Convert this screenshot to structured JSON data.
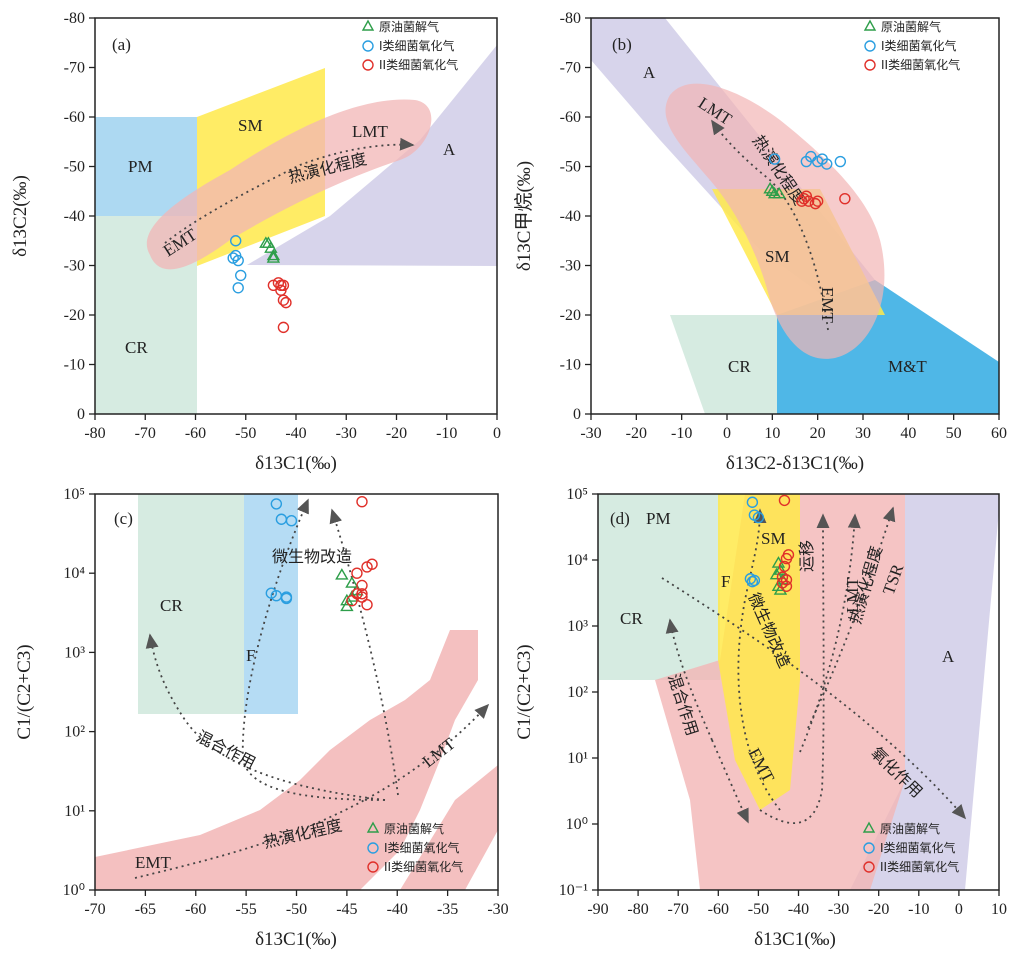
{
  "legend": [
    {
      "label": "原油菌解气",
      "marker": "triangle",
      "color": "#2e9e4a"
    },
    {
      "label": "I类细菌氧化气",
      "marker": "circle",
      "color": "#2a9ee0"
    },
    {
      "label": "II类细菌氧化气",
      "marker": "circle",
      "color": "#e0302a"
    }
  ],
  "region_colors": {
    "PM": "#9fd2f0",
    "CR": "#cfe8dc",
    "SM": "#ffe94a",
    "LMT": "#f2b5b5",
    "EMT": "#f2b5b5",
    "A": "#cdc9e6",
    "F": "#a8d6f2",
    "M&T": "#46b3e6"
  },
  "chart_data": [
    {
      "type": "scatter",
      "panel": "(a)",
      "xlabel": "δ13C1(‰)",
      "ylabel": "δ13C2(‰)",
      "xlim": [
        -80,
        0
      ],
      "ylim": [
        -80,
        0
      ],
      "xticks": [
        -80,
        -70,
        -60,
        -50,
        -40,
        -30,
        -20,
        -10,
        0
      ],
      "yticks": [
        0,
        -10,
        -20,
        -30,
        -40,
        -50,
        -60,
        -70,
        -80
      ],
      "region_labels": [
        "PM",
        "CR",
        "SM",
        "LMT",
        "A",
        "EMT"
      ],
      "annotations": [
        "热演化程度"
      ],
      "series": [
        {
          "name": "原油菌解气",
          "points": [
            [
              -45.5,
              -34.5
            ],
            [
              -44.5,
              -32
            ],
            [
              -44.5,
              -31.5
            ],
            [
              -45,
              -33.5
            ],
            [
              -46,
              -34.5
            ]
          ]
        },
        {
          "name": "I类细菌氧化气",
          "points": [
            [
              -51.5,
              -25.5
            ],
            [
              -51,
              -28
            ],
            [
              -51.5,
              -31
            ],
            [
              -52,
              -32
            ],
            [
              -52.5,
              -31.5
            ],
            [
              -52,
              -35
            ]
          ]
        },
        {
          "name": "II类细菌氧化气",
          "points": [
            [
              -42.5,
              -17.5
            ],
            [
              -42,
              -22.5
            ],
            [
              -42.5,
              -23
            ],
            [
              -43,
              -26
            ],
            [
              -44.5,
              -26
            ],
            [
              -43.5,
              -26.5
            ],
            [
              -42.5,
              -26
            ],
            [
              -43,
              -25
            ]
          ]
        }
      ]
    },
    {
      "type": "scatter",
      "panel": "(b)",
      "xlabel": "δ13C2-δ13C1(‰)",
      "ylabel": "δ13C甲烷(‰)",
      "xlim": [
        -30,
        60
      ],
      "ylim": [
        -80,
        0
      ],
      "xticks": [
        -30,
        -20,
        -10,
        0,
        10,
        20,
        30,
        40,
        50,
        60
      ],
      "yticks": [
        0,
        -10,
        -20,
        -30,
        -40,
        -50,
        -60,
        -70,
        -80
      ],
      "region_labels": [
        "A",
        "LMT",
        "SM",
        "EMT",
        "CR",
        "M&T"
      ],
      "annotations": [
        "热演化程度"
      ],
      "series": [
        {
          "name": "原油菌解气",
          "points": [
            [
              9.5,
              -45.5
            ],
            [
              10.5,
              -44.5
            ],
            [
              11.5,
              -44.5
            ],
            [
              10,
              -45
            ]
          ]
        },
        {
          "name": "I类细菌氧化气",
          "points": [
            [
              10.5,
              -51.5
            ],
            [
              17.5,
              -51
            ],
            [
              18.5,
              -52
            ],
            [
              20,
              -51
            ],
            [
              21,
              -51.5
            ],
            [
              22,
              -50.5
            ],
            [
              25,
              -51
            ]
          ]
        },
        {
          "name": "II类细菌氧化气",
          "points": [
            [
              16.5,
              -43
            ],
            [
              17,
              -43.5
            ],
            [
              17.5,
              -44
            ],
            [
              18,
              -43
            ],
            [
              19.5,
              -42.5
            ],
            [
              20,
              -43
            ],
            [
              26,
              -43.5
            ]
          ]
        }
      ]
    },
    {
      "type": "scatter",
      "panel": "(c)",
      "xlabel": "δ13C1(‰)",
      "ylabel": "C1/(C2+C3)",
      "xlim": [
        -70,
        -30
      ],
      "ylog": [
        0,
        5
      ],
      "xticks": [
        -70,
        -65,
        -60,
        -55,
        -50,
        -45,
        -40,
        -35,
        -30
      ],
      "yticks": [
        "10⁰",
        "10¹",
        "10²",
        "10³",
        "10⁴",
        "10⁵"
      ],
      "region_labels": [
        "CR",
        "F",
        "EMT",
        "LMT"
      ],
      "annotations": [
        "微生物改造",
        "混合作用",
        "热演化程度"
      ],
      "series": [
        {
          "name": "原油菌解气",
          "points": [
            [
              -45.5,
              9500
            ],
            [
              -44.5,
              7500
            ],
            [
              -44,
              6000
            ],
            [
              -45,
              4500
            ],
            [
              -44.5,
              5000
            ],
            [
              -45,
              3800
            ]
          ]
        },
        {
          "name": "I类细菌氧化气",
          "points": [
            [
              -52,
              75000
            ],
            [
              -51.5,
              48000
            ],
            [
              -50.5,
              46000
            ],
            [
              -52.5,
              5600
            ],
            [
              -52,
              5200
            ],
            [
              -51,
              5000
            ],
            [
              -51,
              4800
            ]
          ]
        },
        {
          "name": "II类细菌氧化气",
          "points": [
            [
              -43.5,
              80000
            ],
            [
              -42.5,
              13000
            ],
            [
              -43,
              12000
            ],
            [
              -44,
              10000
            ],
            [
              -43.5,
              7000
            ],
            [
              -44,
              5500
            ],
            [
              -43.5,
              5000
            ],
            [
              -44.5,
              4500
            ],
            [
              -43,
              4000
            ],
            [
              -43.5,
              5500
            ]
          ]
        }
      ]
    },
    {
      "type": "scatter",
      "panel": "(d)",
      "xlabel": "δ13C1(‰)",
      "ylabel": "C1/(C2+C3)",
      "xlim": [
        -90,
        10
      ],
      "ylog": [
        -1,
        5
      ],
      "xticks": [
        -90,
        -80,
        -70,
        -60,
        -50,
        -40,
        -30,
        -20,
        -10,
        0,
        10
      ],
      "yticks": [
        "10⁻¹",
        "10⁰",
        "10¹",
        "10²",
        "10³",
        "10⁴",
        "10⁵"
      ],
      "region_labels": [
        "PM",
        "F",
        "SM",
        "CR",
        "EMT",
        "LMT",
        "TSR",
        "A"
      ],
      "annotations": [
        "运移",
        "微生物改造",
        "混合作用",
        "热演化程度",
        "氧化作用"
      ],
      "series": [
        {
          "name": "原油菌解气",
          "points": [
            [
              -45,
              9000
            ],
            [
              -44.5,
              7000
            ],
            [
              -45.5,
              6000
            ],
            [
              -44,
              5000
            ],
            [
              -45,
              4000
            ],
            [
              -44.5,
              3500
            ]
          ]
        },
        {
          "name": "I类细菌氧化气",
          "points": [
            [
              -51.5,
              75000
            ],
            [
              -51,
              48000
            ],
            [
              -50,
              44000
            ],
            [
              -52,
              5200
            ],
            [
              -51,
              4900
            ],
            [
              -51.5,
              4700
            ]
          ]
        },
        {
          "name": "II类细菌氧化气",
          "points": [
            [
              -43.5,
              80000
            ],
            [
              -42.5,
              12000
            ],
            [
              -43,
              10500
            ],
            [
              -43.5,
              8000
            ],
            [
              -44,
              5500
            ],
            [
              -43,
              5000
            ],
            [
              -44,
              4500
            ],
            [
              -43,
              4000
            ]
          ]
        }
      ]
    }
  ]
}
